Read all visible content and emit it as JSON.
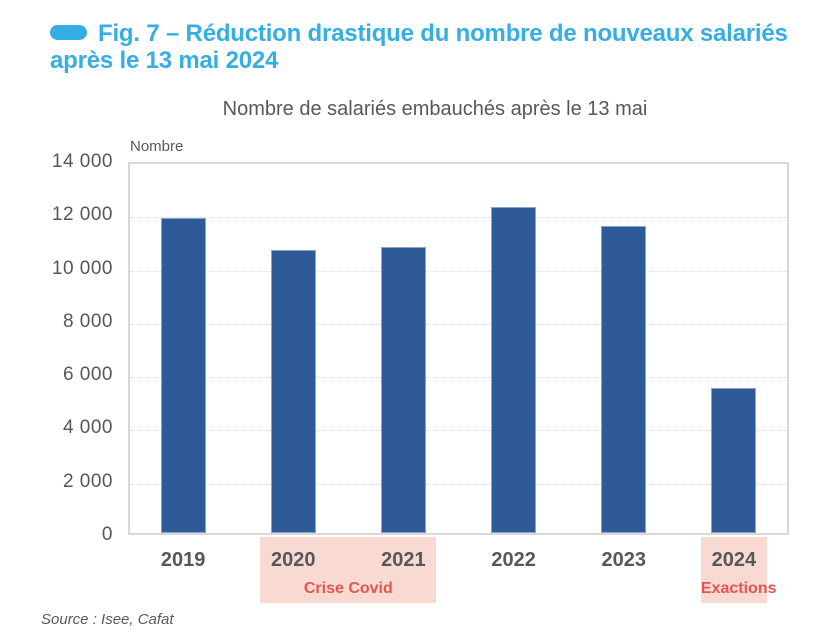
{
  "figure": {
    "caption": "Fig. 7 – Réduction drastique du nombre de nouveaux salariés après le 13 mai 2024",
    "accent_color": "#35AEE3"
  },
  "chart_data": {
    "type": "bar",
    "title": "Nombre de salariés embauchés après le 13 mai",
    "ylabel": "Nombre",
    "categories": [
      "2019",
      "2020",
      "2021",
      "2022",
      "2023",
      "2024"
    ],
    "values": [
      11900,
      10700,
      10800,
      12300,
      11600,
      5500
    ],
    "ylim": [
      0,
      14000
    ],
    "ytick_step": 2000,
    "ytick_labels": [
      "0",
      "2 000",
      "4 000",
      "6 000",
      "8 000",
      "10 000",
      "12 000",
      "14 000"
    ],
    "grid": "horizontal-dotted",
    "legend": "none",
    "bar_color": "#2E5B97",
    "annotations": [
      {
        "label": "Crise Covid",
        "categories": [
          "2020",
          "2021"
        ],
        "text_color": "#E65450",
        "band_color": "#F9DAD2"
      },
      {
        "label": "Exactions",
        "categories": [
          "2024"
        ],
        "text_color": "#E65450",
        "band_color": "#F9DAD2"
      }
    ]
  },
  "source": "Source : Isee, Cafat"
}
